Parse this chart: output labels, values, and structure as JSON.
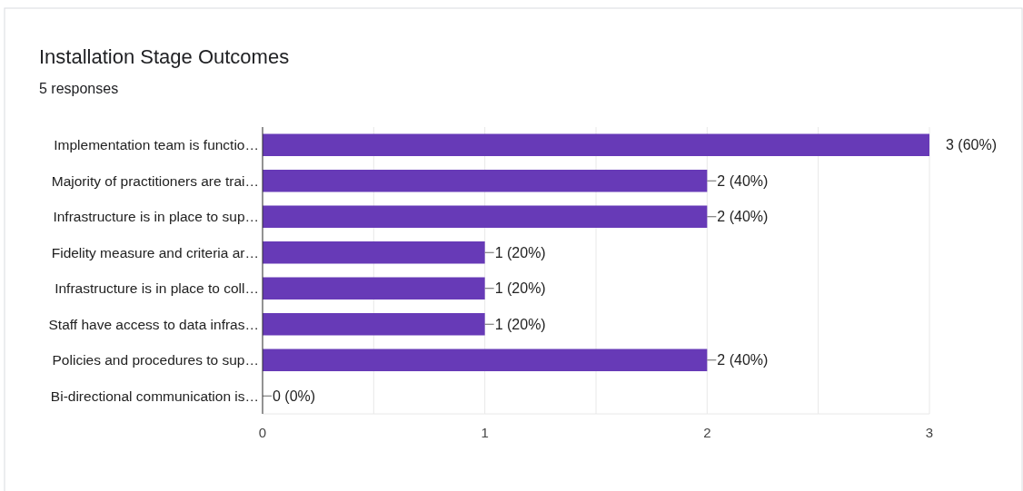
{
  "chart_data": {
    "type": "bar",
    "orientation": "horizontal",
    "title": "Installation Stage Outcomes",
    "subtitle": "5 responses",
    "categories": [
      "Implementation team is functio…",
      "Majority of practitioners are trai…",
      "Infrastructure is in place to sup…",
      "Fidelity measure and criteria ar…",
      "Infrastructure is in place to coll…",
      "Staff have access to data infras…",
      "Policies and procedures to sup…",
      "Bi-directional communication is…"
    ],
    "values": [
      3,
      2,
      2,
      1,
      1,
      1,
      2,
      0
    ],
    "value_labels": [
      "3 (60%)",
      "2 (40%)",
      "2 (40%)",
      "1 (20%)",
      "1 (20%)",
      "1 (20%)",
      "2 (40%)",
      "0 (0%)"
    ],
    "color": "#673ab7",
    "xlim": [
      0,
      3
    ],
    "xticks": [
      0,
      {
        "value": 0.5,
        "label": null
      },
      1,
      {
        "value": 1.5,
        "label": null
      },
      2,
      {
        "value": 2.5,
        "label": null
      },
      3
    ],
    "grid": "x"
  }
}
